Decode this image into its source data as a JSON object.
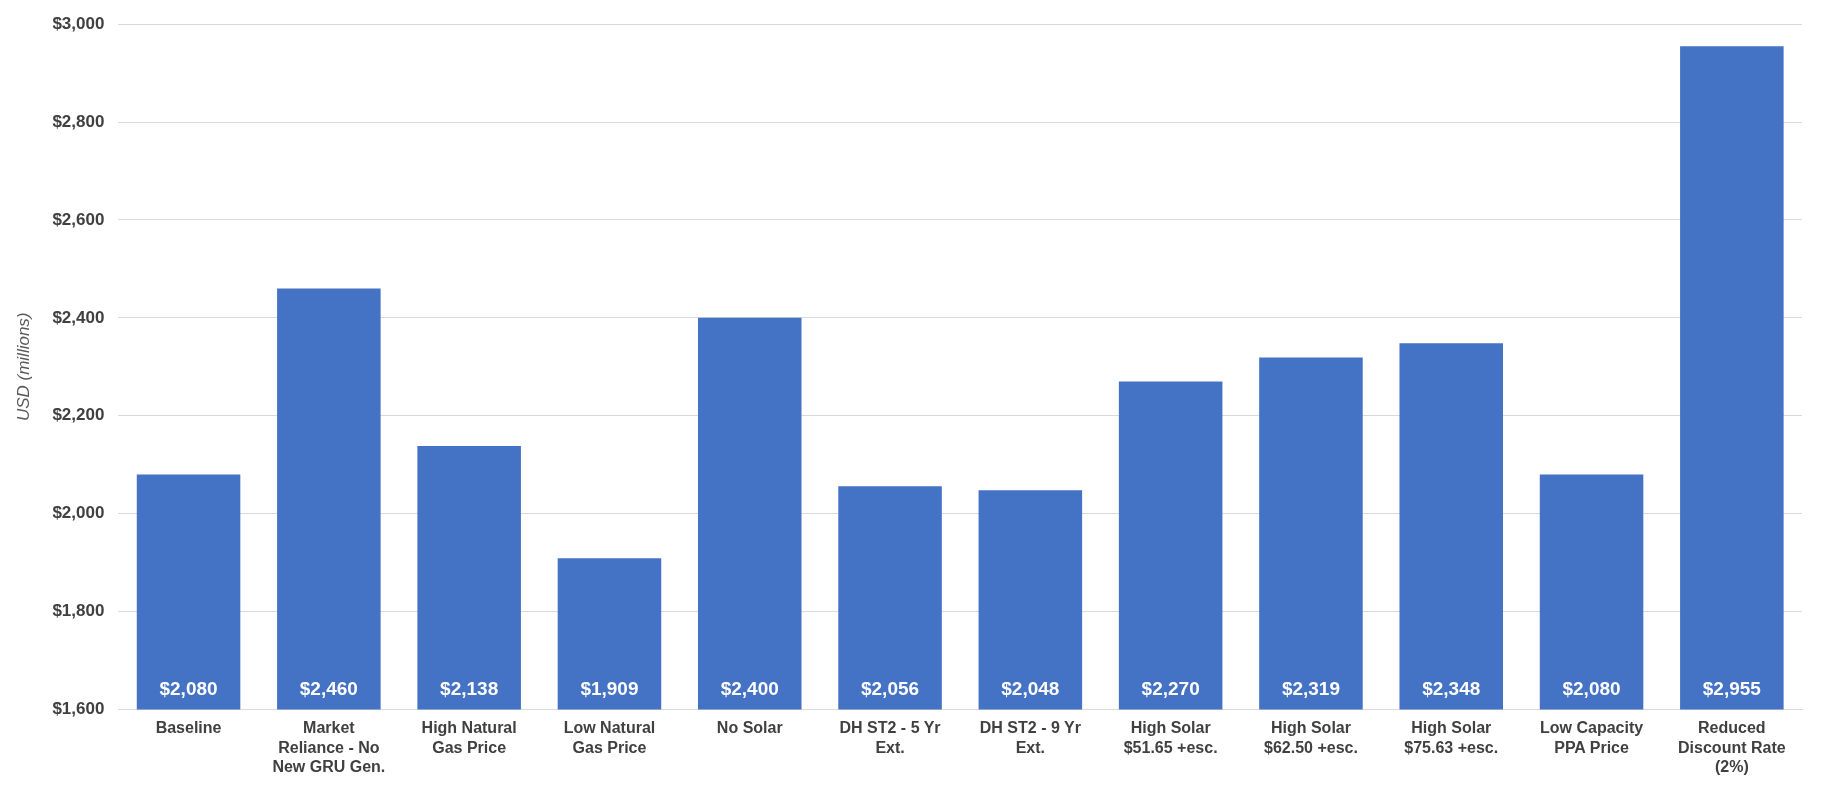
{
  "chart_data": {
    "type": "bar",
    "ylabel": "USD (millions)",
    "categories": [
      "Baseline",
      "Market Reliance - No New GRU Gen.",
      "High Natural Gas Price",
      "Low Natural Gas Price",
      "No Solar",
      "DH ST2 - 5 Yr Ext.",
      "DH ST2 - 9 Yr Ext.",
      "High Solar $51.65 +esc.",
      "High Solar $62.50 +esc.",
      "High Solar $75.63 +esc.",
      "Low Capacity PPA Price",
      "Reduced Discount Rate (2%)"
    ],
    "values": [
      2080,
      2460,
      2138,
      1909,
      2400,
      2056,
      2048,
      2270,
      2319,
      2348,
      2080,
      2955
    ],
    "value_labels": [
      "$2,080",
      "$2,460",
      "$2,138",
      "$1,909",
      "$2,400",
      "$2,056",
      "$2,048",
      "$2,270",
      "$2,319",
      "$2,348",
      "$2,080",
      "$2,955"
    ],
    "color": "#4472c4",
    "ylim": [
      1600,
      3000
    ],
    "yticks": [
      {
        "value": 1600,
        "label": "$1,600"
      },
      {
        "value": 1800,
        "label": "$1,800"
      },
      {
        "value": 2000,
        "label": "$2,000"
      },
      {
        "value": 2200,
        "label": "$2,200"
      },
      {
        "value": 2400,
        "label": "$2,400"
      },
      {
        "value": 2600,
        "label": "$2,600"
      },
      {
        "value": 2800,
        "label": "$2,800"
      },
      {
        "value": 3000,
        "label": "$3,000"
      }
    ],
    "grid": "y",
    "legend": false
  }
}
